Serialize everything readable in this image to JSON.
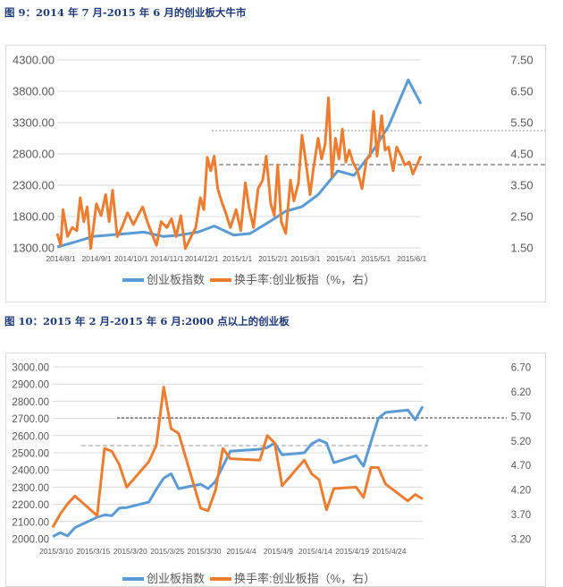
{
  "figures": [
    {
      "title": "图 9：2014 年 7 月-2015 年 6 月的创业板大牛市"
    },
    {
      "title": "图 10：2015 年 2 月-2015 年 6 月:2000 点以上的创业板"
    }
  ],
  "colors": {
    "index": "#5b9bd5",
    "turnover": "#ed7d31",
    "grid": "#d9d9d9",
    "title": "#1f3a7a"
  },
  "chart_data": [
    {
      "type": "line",
      "title": "",
      "x_type": "date",
      "x_ticks": [
        "2014/8/1",
        "2014/9/1",
        "2014/10/1",
        "2014/11/1",
        "2014/12/1",
        "2015/1/1",
        "2015/2/1",
        "2015/3/1",
        "2015/4/1",
        "2015/5/1",
        "2015/6/1"
      ],
      "y_left": {
        "range": [
          1300,
          4300
        ],
        "ticks": [
          "4300.00",
          "3800.00",
          "3300.00",
          "2800.00",
          "2300.00",
          "1800.00",
          "1300.00"
        ]
      },
      "y_right": {
        "range": [
          1.5,
          7.5
        ],
        "ticks": [
          "7.50",
          "6.50",
          "5.50",
          "4.50",
          "3.50",
          "2.50",
          "1.50"
        ]
      },
      "grid": true,
      "legend": "bottom",
      "reference_lines_right_axis": [
        5.26,
        4.2
      ],
      "series": [
        {
          "name": "创业板指数",
          "axis": "left",
          "color": "#5b9bd5",
          "x": [
            "2014/8/1",
            "2014/8/15",
            "2014/9/1",
            "2014/9/15",
            "2014/10/1",
            "2014/10/15",
            "2014/11/1",
            "2014/11/15",
            "2014/12/1",
            "2014/12/15",
            "2015/1/1",
            "2015/1/15",
            "2015/2/1",
            "2015/2/15",
            "2015/3/1",
            "2015/3/15",
            "2015/4/1",
            "2015/4/15",
            "2015/5/1",
            "2015/5/15",
            "2015/6/1",
            "2015/6/12"
          ],
          "y": [
            1314,
            1386,
            1481,
            1505,
            1529,
            1552,
            1481,
            1505,
            1552,
            1648,
            1505,
            1529,
            1719,
            1886,
            1957,
            2148,
            2529,
            2457,
            2838,
            3243,
            3981,
            3600
          ]
        },
        {
          "name": "换手率:创业板指（%，右）",
          "axis": "right",
          "color": "#ed7d31",
          "x": [
            "2014/8/1",
            "2014/8/4",
            "2014/8/6",
            "2014/8/10",
            "2014/8/14",
            "2014/8/18",
            "2014/8/21",
            "2014/8/24",
            "2014/8/27",
            "2014/8/30",
            "2014/9/4",
            "2014/9/8",
            "2014/9/12",
            "2014/9/15",
            "2014/9/18",
            "2014/9/22",
            "2014/9/26",
            "2014/10/1",
            "2014/10/6",
            "2014/10/10",
            "2014/10/14",
            "2014/10/18",
            "2014/10/22",
            "2014/10/26",
            "2014/10/30",
            "2014/11/4",
            "2014/11/8",
            "2014/11/12",
            "2014/11/16",
            "2014/11/20",
            "2014/11/25",
            "2014/11/29",
            "2014/12/3",
            "2014/12/6",
            "2014/12/9",
            "2014/12/12",
            "2014/12/15",
            "2014/12/18",
            "2014/12/22",
            "2014/12/25",
            "2014/12/29",
            "2015/1/3",
            "2015/1/7",
            "2015/1/11",
            "2015/1/14",
            "2015/1/18",
            "2015/1/22",
            "2015/1/26",
            "2015/1/29",
            "2015/2/2",
            "2015/2/5",
            "2015/2/8",
            "2015/2/11",
            "2015/2/15",
            "2015/2/19",
            "2015/2/22",
            "2015/2/26",
            "2015/3/1",
            "2015/3/4",
            "2015/3/8",
            "2015/3/11",
            "2015/3/15",
            "2015/3/18",
            "2015/3/21",
            "2015/3/24",
            "2015/3/27",
            "2015/3/30",
            "2015/4/2",
            "2015/4/5",
            "2015/4/8",
            "2015/4/11",
            "2015/4/14",
            "2015/4/18",
            "2015/4/22",
            "2015/4/26",
            "2015/4/29",
            "2015/5/2",
            "2015/5/5",
            "2015/5/9",
            "2015/5/12",
            "2015/5/15",
            "2015/5/19",
            "2015/5/22",
            "2015/5/26",
            "2015/5/29",
            "2015/6/2",
            "2015/6/5",
            "2015/6/12"
          ],
          "y": [
            1.96,
            1.58,
            2.72,
            1.86,
            2.15,
            2.05,
            3.1,
            2.34,
            2.81,
            1.48,
            2.91,
            2.53,
            3.2,
            2.34,
            3.34,
            1.86,
            2.15,
            2.62,
            2.24,
            2.53,
            2.81,
            2.34,
            1.96,
            1.58,
            2.34,
            2.15,
            2.43,
            1.86,
            2.53,
            1.48,
            1.86,
            2.15,
            3.1,
            2.72,
            4.39,
            3.96,
            4.43,
            3.39,
            2.91,
            2.62,
            2.15,
            2.72,
            2.05,
            3.58,
            2.81,
            2.15,
            3.39,
            3.67,
            4.43,
            2.91,
            2.53,
            4.15,
            2.34,
            1.96,
            3.67,
            3.0,
            3.58,
            5.1,
            4.34,
            3.2,
            4.05,
            5.0,
            4.34,
            4.81,
            6.29,
            3.77,
            5.0,
            4.34,
            5.29,
            4.24,
            4.62,
            4.24,
            3.96,
            3.39,
            4.34,
            4.43,
            5.86,
            4.43,
            5.72,
            4.62,
            4.72,
            3.96,
            4.72,
            4.43,
            4.15,
            4.24,
            3.86,
            4.43
          ]
        }
      ]
    },
    {
      "type": "line",
      "title": "",
      "x_type": "date",
      "x_ticks": [
        "2015/3/10",
        "2015/3/15",
        "2015/3/20",
        "2015/3/25",
        "2015/3/30",
        "2015/4/4",
        "2015/4/9",
        "2015/4/14",
        "2015/4/19",
        "2015/4/24"
      ],
      "y_left": {
        "range": [
          2000,
          3000
        ],
        "ticks": [
          "3000.00",
          "2900.00",
          "2800.00",
          "2700.00",
          "2600.00",
          "2500.00",
          "2400.00",
          "2300.00",
          "2200.00",
          "2100.00",
          "2000.00"
        ]
      },
      "y_right": {
        "range": [
          3.2,
          6.7
        ],
        "ticks": [
          "6.70",
          "6.20",
          "5.70",
          "5.20",
          "4.70",
          "4.20",
          "3.70",
          "3.20"
        ]
      },
      "grid": true,
      "legend": "bottom",
      "reference_lines_right_axis": [
        5.7,
        5.13
      ],
      "series": [
        {
          "name": "创业板指数",
          "axis": "left",
          "color": "#5b9bd5",
          "x": [
            "2015/3/10",
            "2015/3/11",
            "2015/3/12",
            "2015/3/13",
            "2015/3/16",
            "2015/3/17",
            "2015/3/18",
            "2015/3/19",
            "2015/3/20",
            "2015/3/23",
            "2015/3/24",
            "2015/3/25",
            "2015/3/26",
            "2015/3/27",
            "2015/3/30",
            "2015/3/31",
            "2015/4/1",
            "2015/4/2",
            "2015/4/3",
            "2015/4/7",
            "2015/4/8",
            "2015/4/9",
            "2015/4/10",
            "2015/4/13",
            "2015/4/14",
            "2015/4/15",
            "2015/4/16",
            "2015/4/17",
            "2015/4/20",
            "2015/4/21",
            "2015/4/22",
            "2015/4/23",
            "2015/4/24",
            "2015/4/27",
            "2015/4/28",
            "2015/4/29"
          ],
          "y": [
            2012,
            2035,
            2016,
            2064,
            2125,
            2138,
            2134,
            2178,
            2181,
            2213,
            2287,
            2352,
            2378,
            2291,
            2317,
            2291,
            2334,
            2422,
            2509,
            2521,
            2530,
            2557,
            2488,
            2500,
            2552,
            2575,
            2557,
            2442,
            2483,
            2422,
            2561,
            2700,
            2735,
            2749,
            2692,
            2770
          ]
        },
        {
          "name": "换手率:创业板指（%，右）",
          "axis": "right",
          "color": "#ed7d31",
          "x": [
            "2015/3/10",
            "2015/3/11",
            "2015/3/12",
            "2015/3/13",
            "2015/3/16",
            "2015/3/17",
            "2015/3/18",
            "2015/3/19",
            "2015/3/20",
            "2015/3/23",
            "2015/3/24",
            "2015/3/25",
            "2015/3/26",
            "2015/3/27",
            "2015/3/30",
            "2015/3/31",
            "2015/4/1",
            "2015/4/2",
            "2015/4/3",
            "2015/4/7",
            "2015/4/8",
            "2015/4/9",
            "2015/4/10",
            "2015/4/13",
            "2015/4/14",
            "2015/4/15",
            "2015/4/16",
            "2015/4/17",
            "2015/4/20",
            "2015/4/21",
            "2015/4/22",
            "2015/4/23",
            "2015/4/24",
            "2015/4/27",
            "2015/4/28",
            "2015/4/29"
          ],
          "y": [
            3.43,
            3.7,
            3.91,
            4.07,
            3.67,
            5.04,
            4.98,
            4.71,
            4.25,
            4.77,
            5.1,
            6.29,
            5.44,
            5.35,
            3.82,
            3.77,
            4.19,
            5.04,
            4.83,
            4.8,
            5.3,
            5.15,
            4.28,
            4.8,
            4.52,
            4.4,
            3.79,
            4.22,
            4.25,
            4.04,
            4.65,
            4.65,
            4.31,
            3.97,
            4.1,
            4.01
          ]
        }
      ]
    }
  ]
}
